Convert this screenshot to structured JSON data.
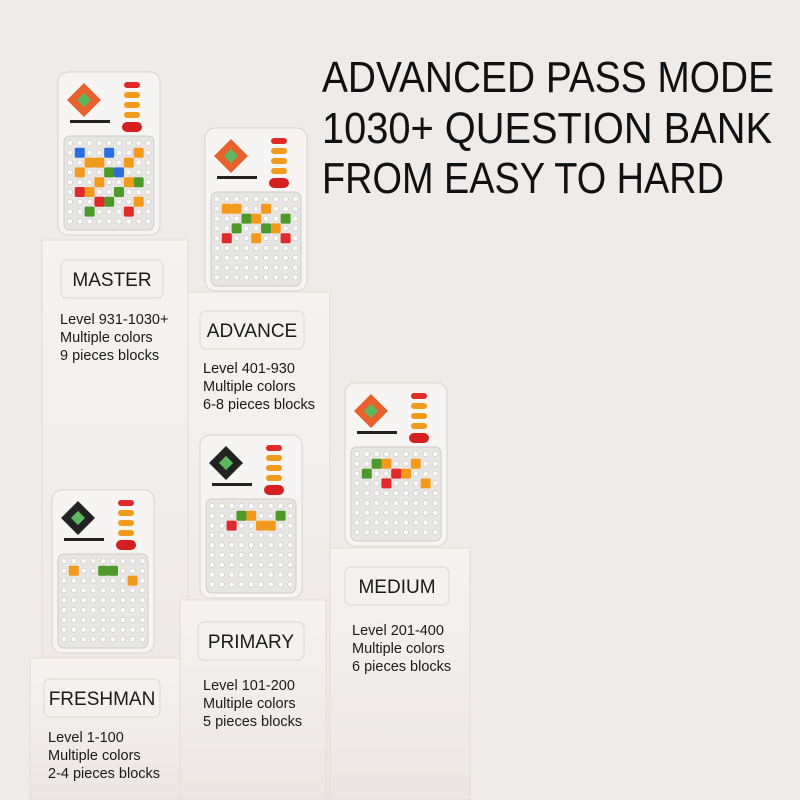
{
  "headline": [
    "ADVANCED PASS MODE",
    "1030+ QUESTION BANK",
    "FROM EASY TO HARD"
  ],
  "levels": [
    {
      "name": "MASTER",
      "details": [
        "Level 931-1030+",
        "Multiple colors",
        "9 pieces blocks"
      ]
    },
    {
      "name": "ADVANCE",
      "details": [
        "Level 401-930",
        "Multiple colors",
        "6-8 pieces blocks"
      ]
    },
    {
      "name": "MEDIUM",
      "details": [
        "Level 201-400",
        "Multiple colors",
        "6 pieces blocks"
      ]
    },
    {
      "name": "PRIMARY",
      "details": [
        "Level 101-200",
        "Multiple colors",
        "5 pieces  blocks"
      ]
    },
    {
      "name": "FRESHMAN",
      "details": [
        "Level 1-100",
        "Multiple colors",
        "2-4 pieces blocks"
      ]
    }
  ]
}
